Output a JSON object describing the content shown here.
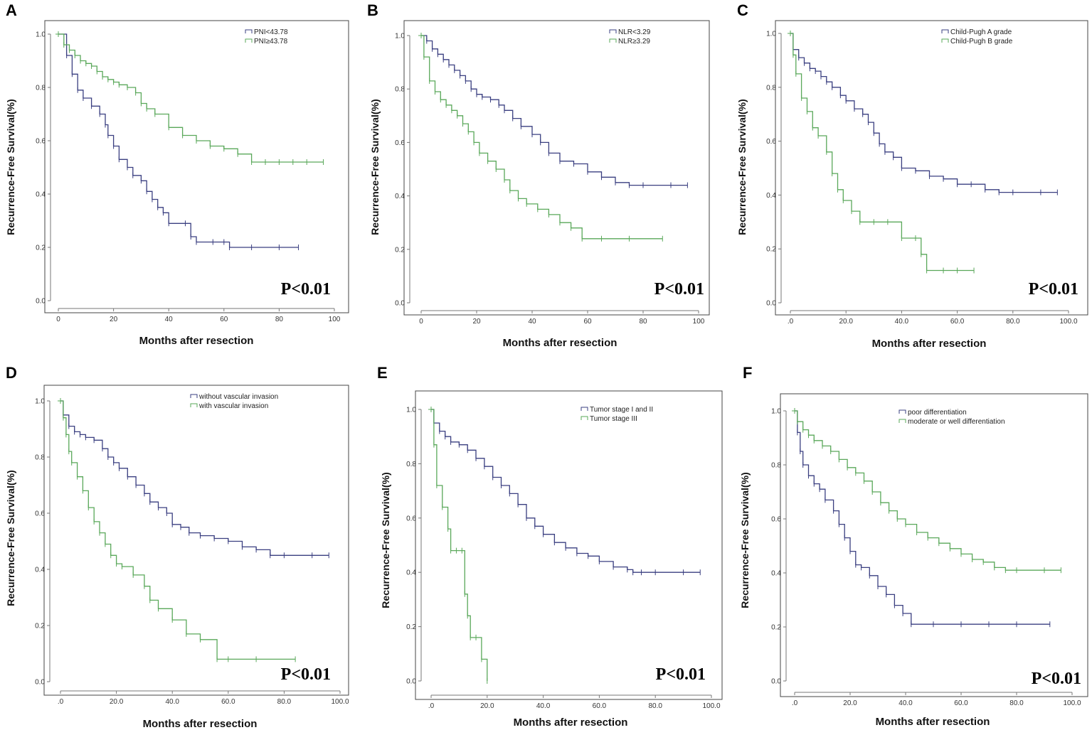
{
  "colors": {
    "series1": "#3a3f80",
    "series2": "#5aa85a",
    "frame": "#444444"
  },
  "chart_data": [
    {
      "panel": "A",
      "type": "line",
      "step": true,
      "xlabel": "Months after resection",
      "ylabel": "Recurrence-Free Survival(%)",
      "xlim": [
        0,
        100
      ],
      "ylim": [
        0,
        1.0
      ],
      "xticks": [
        0,
        20,
        40,
        60,
        80,
        100
      ],
      "xtick_labels": [
        "0",
        "20",
        "40",
        "60",
        "80",
        "100"
      ],
      "yticks": [
        0,
        0.2,
        0.4,
        0.6,
        0.8,
        1.0
      ],
      "ytick_labels": [
        "0.0",
        "0.2",
        "0.4",
        "0.6",
        "0.8",
        "1.0"
      ],
      "annotation": "P<0.01",
      "legend_position": "top-right",
      "series": [
        {
          "name": "PNI<43.78",
          "x": [
            0,
            3,
            5,
            7,
            9,
            12,
            15,
            17,
            18,
            20,
            22,
            25,
            27,
            30,
            32,
            34,
            36,
            38,
            40,
            46,
            48,
            50,
            56,
            60,
            62,
            70,
            80,
            87
          ],
          "y": [
            1.0,
            0.92,
            0.85,
            0.79,
            0.76,
            0.73,
            0.7,
            0.66,
            0.62,
            0.58,
            0.53,
            0.5,
            0.47,
            0.45,
            0.41,
            0.38,
            0.35,
            0.33,
            0.29,
            0.29,
            0.24,
            0.22,
            0.22,
            0.22,
            0.2,
            0.2,
            0.2,
            0.2
          ]
        },
        {
          "name": "PNI≥43.78",
          "x": [
            0,
            2,
            4,
            6,
            8,
            10,
            12,
            14,
            16,
            18,
            20,
            22,
            25,
            28,
            30,
            32,
            35,
            40,
            45,
            50,
            55,
            60,
            65,
            70,
            75,
            80,
            85,
            90,
            96
          ],
          "y": [
            1.0,
            0.96,
            0.94,
            0.92,
            0.9,
            0.89,
            0.88,
            0.86,
            0.84,
            0.83,
            0.82,
            0.81,
            0.8,
            0.78,
            0.74,
            0.72,
            0.7,
            0.65,
            0.62,
            0.6,
            0.58,
            0.57,
            0.55,
            0.52,
            0.52,
            0.52,
            0.52,
            0.52,
            0.52
          ]
        }
      ]
    },
    {
      "panel": "B",
      "type": "line",
      "step": true,
      "xlabel": "Months after resection",
      "ylabel": "Recurrence-Free Survival(%)",
      "xlim": [
        0,
        100
      ],
      "ylim": [
        0,
        1.0
      ],
      "xticks": [
        0,
        20,
        40,
        60,
        80,
        100
      ],
      "xtick_labels": [
        "0",
        "20",
        "40",
        "60",
        "80",
        "100"
      ],
      "yticks": [
        0,
        0.2,
        0.4,
        0.6,
        0.8,
        1.0
      ],
      "ytick_labels": [
        "0.0",
        "0.2",
        "0.4",
        "0.6",
        "0.8",
        "1.0"
      ],
      "annotation": "P<0.01",
      "legend_position": "top-right",
      "series": [
        {
          "name": "NLR<3.29",
          "x": [
            0,
            2,
            4,
            6,
            8,
            10,
            12,
            14,
            16,
            18,
            20,
            22,
            25,
            28,
            30,
            33,
            36,
            40,
            43,
            46,
            50,
            55,
            60,
            65,
            70,
            75,
            80,
            90,
            96
          ],
          "y": [
            1.0,
            0.98,
            0.95,
            0.93,
            0.91,
            0.89,
            0.87,
            0.85,
            0.83,
            0.8,
            0.78,
            0.77,
            0.76,
            0.74,
            0.72,
            0.69,
            0.66,
            0.63,
            0.6,
            0.56,
            0.53,
            0.52,
            0.49,
            0.47,
            0.45,
            0.44,
            0.44,
            0.44,
            0.44
          ]
        },
        {
          "name": "NLR≥3.29",
          "x": [
            0,
            1,
            3,
            5,
            7,
            9,
            11,
            13,
            15,
            17,
            19,
            21,
            24,
            27,
            30,
            32,
            35,
            38,
            42,
            46,
            50,
            54,
            58,
            65,
            75,
            87
          ],
          "y": [
            1.0,
            0.92,
            0.83,
            0.79,
            0.76,
            0.74,
            0.72,
            0.7,
            0.67,
            0.64,
            0.6,
            0.56,
            0.53,
            0.5,
            0.46,
            0.42,
            0.39,
            0.37,
            0.35,
            0.33,
            0.3,
            0.28,
            0.24,
            0.24,
            0.24,
            0.24
          ]
        }
      ]
    },
    {
      "panel": "C",
      "type": "line",
      "step": true,
      "xlabel": "Months after resection",
      "ylabel": "Recurrence-Free Survival(%)",
      "xlim": [
        0,
        100
      ],
      "ylim": [
        0,
        1.0
      ],
      "xticks": [
        0,
        20,
        40,
        60,
        80,
        100
      ],
      "xtick_labels": [
        ".0",
        "20.0",
        "40.0",
        "60.0",
        "80.0",
        "100.0"
      ],
      "yticks": [
        0,
        0.2,
        0.4,
        0.6,
        0.8,
        1.0
      ],
      "ytick_labels": [
        "0.0",
        "0.2",
        "0.4",
        "0.6",
        "0.8",
        "1.0"
      ],
      "annotation": "P<0.01",
      "legend_position": "top-right",
      "series": [
        {
          "name": "Child-Pugh A grade",
          "x": [
            0,
            1,
            3,
            5,
            7,
            9,
            11,
            13,
            15,
            18,
            20,
            23,
            26,
            28,
            30,
            32,
            34,
            37,
            40,
            45,
            50,
            55,
            60,
            65,
            70,
            75,
            80,
            90,
            96
          ],
          "y": [
            1.0,
            0.94,
            0.91,
            0.89,
            0.87,
            0.86,
            0.84,
            0.82,
            0.8,
            0.77,
            0.75,
            0.72,
            0.7,
            0.67,
            0.63,
            0.59,
            0.56,
            0.54,
            0.5,
            0.49,
            0.47,
            0.46,
            0.44,
            0.44,
            0.42,
            0.41,
            0.41,
            0.41,
            0.41
          ]
        },
        {
          "name": "Child-Pugh B grade",
          "x": [
            0,
            1,
            2,
            4,
            6,
            8,
            10,
            13,
            15,
            17,
            19,
            22,
            25,
            30,
            35,
            40,
            45,
            47,
            49,
            55,
            60,
            66
          ],
          "y": [
            1.0,
            0.92,
            0.85,
            0.76,
            0.71,
            0.65,
            0.62,
            0.56,
            0.48,
            0.42,
            0.38,
            0.34,
            0.3,
            0.3,
            0.3,
            0.24,
            0.24,
            0.18,
            0.12,
            0.12,
            0.12,
            0.12
          ]
        }
      ]
    },
    {
      "panel": "D",
      "type": "line",
      "step": true,
      "xlabel": "Months after resection",
      "ylabel": "Recurrence-Free Survival(%)",
      "xlim": [
        0,
        100
      ],
      "ylim": [
        0,
        1.0
      ],
      "xticks": [
        0,
        20,
        40,
        60,
        80,
        100
      ],
      "xtick_labels": [
        ".0",
        "20.0",
        "40.0",
        "60.0",
        "80.0",
        "100.0"
      ],
      "yticks": [
        0,
        0.2,
        0.4,
        0.6,
        0.8,
        1.0
      ],
      "ytick_labels": [
        "0.0",
        "0.2",
        "0.4",
        "0.6",
        "0.8",
        "1.0"
      ],
      "annotation": "P<0.01",
      "legend_position": "top-right",
      "series": [
        {
          "name": "without vascular invasion",
          "x": [
            0,
            1,
            3,
            5,
            7,
            9,
            12,
            15,
            17,
            19,
            21,
            24,
            27,
            30,
            32,
            35,
            38,
            40,
            43,
            46,
            50,
            55,
            60,
            65,
            70,
            75,
            80,
            90,
            96
          ],
          "y": [
            1.0,
            0.95,
            0.91,
            0.89,
            0.88,
            0.87,
            0.86,
            0.83,
            0.8,
            0.78,
            0.76,
            0.73,
            0.7,
            0.67,
            0.64,
            0.62,
            0.6,
            0.56,
            0.55,
            0.53,
            0.52,
            0.51,
            0.5,
            0.48,
            0.47,
            0.45,
            0.45,
            0.45,
            0.45
          ]
        },
        {
          "name": "with vascular invasion",
          "x": [
            0,
            1,
            2,
            3,
            4,
            6,
            8,
            10,
            12,
            14,
            16,
            18,
            20,
            22,
            26,
            30,
            32,
            35,
            40,
            45,
            50,
            56,
            60,
            70,
            84
          ],
          "y": [
            1.0,
            0.94,
            0.88,
            0.82,
            0.78,
            0.73,
            0.68,
            0.62,
            0.57,
            0.53,
            0.49,
            0.45,
            0.42,
            0.41,
            0.38,
            0.34,
            0.29,
            0.26,
            0.22,
            0.17,
            0.15,
            0.08,
            0.08,
            0.08,
            0.08
          ]
        }
      ]
    },
    {
      "panel": "E",
      "type": "line",
      "step": true,
      "xlabel": "Months after resection",
      "ylabel": "Recurrence-Free Survival(%)",
      "xlim": [
        0,
        100
      ],
      "ylim": [
        0,
        1.0
      ],
      "xticks": [
        0,
        20,
        40,
        60,
        80,
        100
      ],
      "xtick_labels": [
        ".0",
        "20.0",
        "40.0",
        "60.0",
        "80.0",
        "100.0"
      ],
      "yticks": [
        0,
        0.2,
        0.4,
        0.6,
        0.8,
        1.0
      ],
      "ytick_labels": [
        "0.0",
        "0.2",
        "0.4",
        "0.6",
        "0.8",
        "1.0"
      ],
      "annotation": "P<0.01",
      "legend_position": "top-right",
      "series": [
        {
          "name": "Tumor stage I and II",
          "x": [
            0,
            1,
            3,
            5,
            7,
            10,
            13,
            16,
            19,
            22,
            25,
            28,
            31,
            34,
            37,
            40,
            44,
            48,
            52,
            56,
            60,
            65,
            70,
            72,
            75,
            80,
            90,
            96
          ],
          "y": [
            1.0,
            0.95,
            0.92,
            0.9,
            0.88,
            0.87,
            0.85,
            0.82,
            0.79,
            0.75,
            0.72,
            0.69,
            0.65,
            0.6,
            0.57,
            0.54,
            0.51,
            0.49,
            0.47,
            0.46,
            0.44,
            0.42,
            0.41,
            0.4,
            0.4,
            0.4,
            0.4,
            0.4
          ]
        },
        {
          "name": "Tumor stage III",
          "x": [
            0,
            1,
            2,
            4,
            6,
            7,
            9,
            11,
            12,
            13,
            14,
            16,
            18,
            20
          ],
          "y": [
            1.0,
            0.87,
            0.72,
            0.64,
            0.56,
            0.48,
            0.48,
            0.48,
            0.32,
            0.24,
            0.16,
            0.16,
            0.08,
            0.0
          ]
        }
      ]
    },
    {
      "panel": "F",
      "type": "line",
      "step": true,
      "xlabel": "Months after resection",
      "ylabel": "Recurrence-Free Survival(%)",
      "xlim": [
        0,
        100
      ],
      "ylim": [
        0,
        1.0
      ],
      "xticks": [
        0,
        20,
        40,
        60,
        80,
        100
      ],
      "xtick_labels": [
        ".0",
        "20.0",
        "40.0",
        "60.0",
        "80.0",
        "100.0"
      ],
      "yticks": [
        0,
        0.2,
        0.4,
        0.6,
        0.8,
        1.0
      ],
      "ytick_labels": [
        "0.0",
        "0.2",
        "0.4",
        "0.6",
        "0.8",
        "1.0"
      ],
      "annotation": "P<0.01",
      "legend_position": "top-right",
      "series": [
        {
          "name": "poor differentiation",
          "x": [
            0,
            1,
            2,
            3,
            5,
            7,
            9,
            11,
            14,
            16,
            18,
            20,
            22,
            24,
            27,
            30,
            33,
            36,
            39,
            42,
            50,
            60,
            70,
            80,
            92
          ],
          "y": [
            1.0,
            0.92,
            0.85,
            0.8,
            0.76,
            0.73,
            0.71,
            0.67,
            0.63,
            0.58,
            0.53,
            0.48,
            0.43,
            0.42,
            0.39,
            0.35,
            0.32,
            0.28,
            0.25,
            0.21,
            0.21,
            0.21,
            0.21,
            0.21,
            0.21
          ]
        },
        {
          "name": "moderate or well differentiation",
          "x": [
            0,
            1,
            3,
            5,
            7,
            10,
            13,
            16,
            19,
            22,
            25,
            28,
            31,
            34,
            37,
            40,
            44,
            48,
            52,
            56,
            60,
            64,
            68,
            72,
            76,
            80,
            90,
            96
          ],
          "y": [
            1.0,
            0.96,
            0.93,
            0.91,
            0.89,
            0.87,
            0.85,
            0.82,
            0.79,
            0.77,
            0.74,
            0.7,
            0.66,
            0.63,
            0.6,
            0.58,
            0.55,
            0.53,
            0.51,
            0.49,
            0.47,
            0.45,
            0.44,
            0.42,
            0.41,
            0.41,
            0.41,
            0.41
          ]
        }
      ]
    }
  ]
}
